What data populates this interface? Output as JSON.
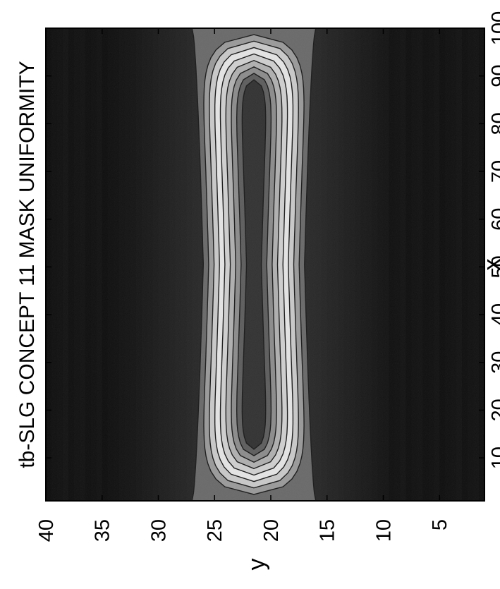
{
  "chart_data": {
    "type": "heatmap",
    "title": "tb-SLG CONCEPT 11 MASK UNIFORMITY",
    "xlabel": "x",
    "ylabel": "y",
    "xlim": [
      1,
      100
    ],
    "ylim": [
      40,
      1
    ],
    "xticks": [
      10,
      20,
      30,
      40,
      50,
      60,
      70,
      80,
      90,
      100
    ],
    "yticks": [
      5,
      10,
      15,
      20,
      25,
      30,
      35,
      40
    ],
    "colormap": "gray",
    "orientation": "figure rotated 90 degrees counter-clockwise",
    "contour_levels": 9,
    "band": {
      "y_center": 21.5,
      "half_width_at_ends": 5.5,
      "half_width_at_middle": 4.5,
      "x_range": [
        1,
        100
      ]
    },
    "background_level": "dark"
  }
}
